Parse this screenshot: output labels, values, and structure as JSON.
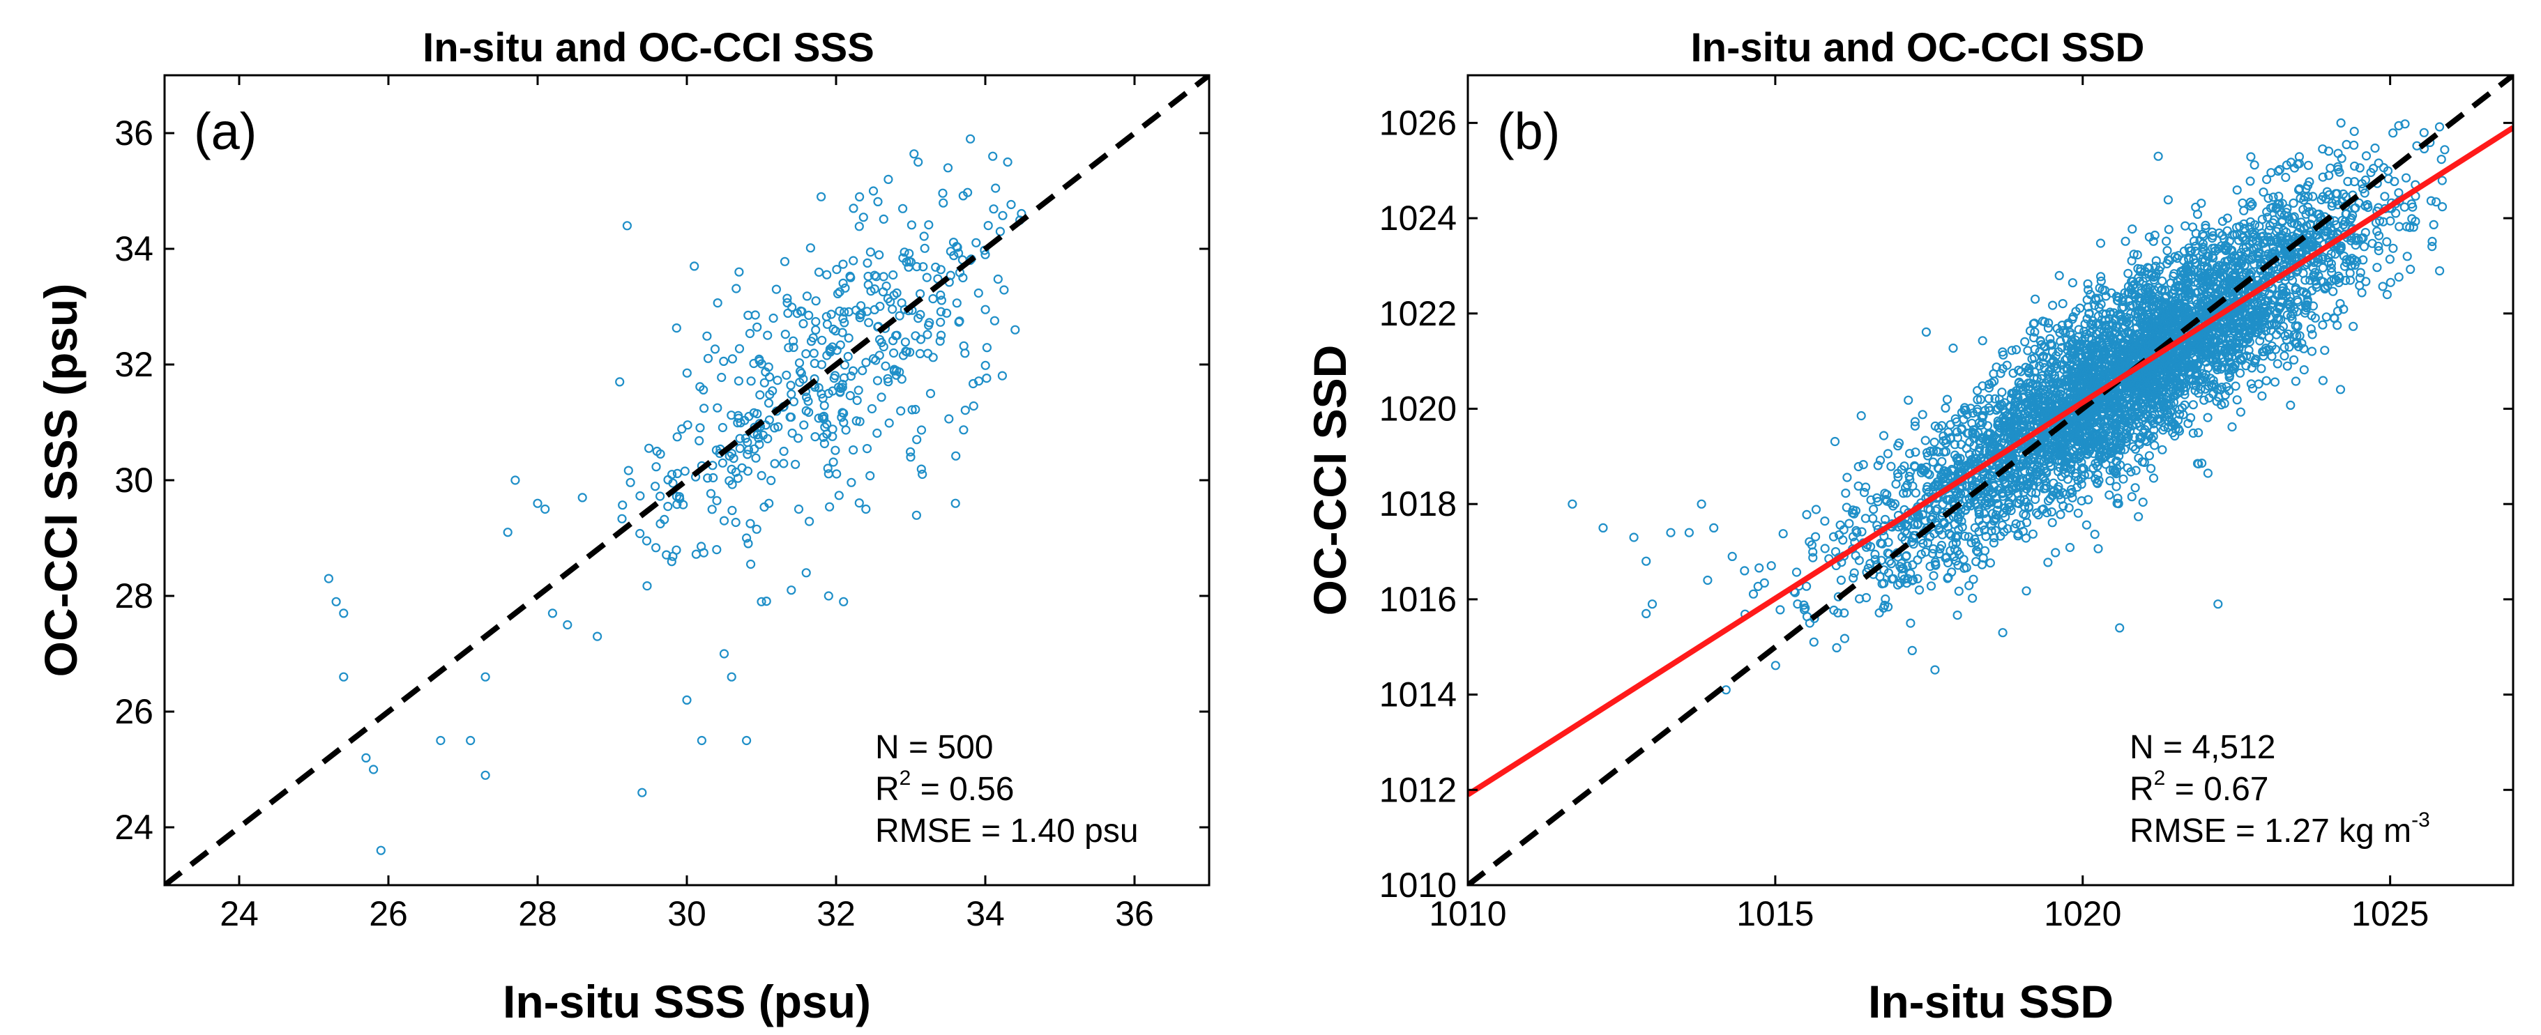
{
  "chart_data": [
    {
      "type": "scatter",
      "panel_label": "(a)",
      "title": "In-situ and OC-CCI SSS",
      "xlabel": "In-situ SSS (psu)",
      "ylabel": "OC-CCI SSS (psu)",
      "xlim": [
        23,
        37
      ],
      "ylim": [
        23,
        37
      ],
      "xticks": [
        24,
        26,
        28,
        30,
        32,
        34,
        36
      ],
      "yticks": [
        24,
        26,
        28,
        30,
        32,
        34,
        36
      ],
      "grid": false,
      "marker_color": "#1f8fc8",
      "reference_line": {
        "style": "dashed",
        "color": "#000000",
        "from": [
          23,
          23
        ],
        "to": [
          37,
          37
        ]
      },
      "stats": {
        "n": "N = 500",
        "r2_prefix": "R",
        "r2_sup": "2",
        "r2_value": " = 0.56",
        "rmse_prefix": "RMSE = 1.40 psu",
        "rmse_sup": ""
      },
      "n_points": 500,
      "points": [
        [
          25.2,
          28.3
        ],
        [
          25.3,
          27.9
        ],
        [
          25.4,
          27.7
        ],
        [
          25.4,
          26.6
        ],
        [
          25.7,
          25.2
        ],
        [
          25.8,
          25.0
        ],
        [
          25.9,
          23.6
        ],
        [
          26.7,
          25.5
        ],
        [
          27.1,
          25.5
        ],
        [
          27.3,
          24.9
        ],
        [
          27.3,
          26.6
        ],
        [
          27.6,
          29.1
        ],
        [
          27.7,
          30.0
        ],
        [
          28.0,
          29.6
        ],
        [
          28.1,
          29.5
        ],
        [
          28.2,
          27.7
        ],
        [
          28.4,
          27.5
        ],
        [
          28.6,
          29.7
        ],
        [
          28.8,
          27.3
        ],
        [
          29.1,
          31.7
        ],
        [
          29.2,
          34.4
        ],
        [
          29.4,
          24.6
        ],
        [
          29.6,
          30.5
        ],
        [
          29.8,
          30.1
        ],
        [
          30.0,
          26.2
        ],
        [
          30.1,
          33.7
        ],
        [
          30.2,
          25.5
        ],
        [
          30.5,
          27.0
        ],
        [
          30.6,
          26.6
        ],
        [
          30.7,
          33.6
        ],
        [
          30.8,
          25.5
        ],
        [
          31.0,
          27.9
        ],
        [
          31.2,
          33.3
        ],
        [
          31.4,
          28.1
        ],
        [
          31.6,
          28.4
        ],
        [
          31.9,
          28.0
        ],
        [
          32.1,
          27.9
        ],
        [
          31.8,
          34.9
        ],
        [
          32.5,
          35.0
        ],
        [
          32.7,
          35.2
        ],
        [
          33.1,
          35.5
        ],
        [
          33.5,
          35.4
        ],
        [
          33.8,
          35.9
        ],
        [
          34.1,
          35.6
        ],
        [
          34.3,
          35.5
        ],
        [
          34.4,
          32.6
        ],
        [
          33.6,
          29.6
        ],
        [
          33.0,
          30.4
        ],
        [
          32.4,
          29.5
        ],
        [
          31.5,
          29.5
        ],
        [
          30.5,
          29.3
        ],
        [
          30.4,
          28.8
        ],
        [
          30.8,
          29.0
        ],
        [
          31.1,
          29.6
        ],
        [
          30.9,
          30.8
        ],
        [
          31.3,
          30.5
        ],
        [
          31.6,
          31.2
        ],
        [
          31.9,
          31.5
        ],
        [
          32.2,
          31.8
        ],
        [
          32.5,
          32.1
        ],
        [
          32.8,
          32.5
        ],
        [
          33.1,
          32.8
        ],
        [
          33.4,
          33.2
        ],
        [
          33.7,
          33.5
        ],
        [
          34.0,
          33.9
        ],
        [
          34.2,
          34.3
        ]
      ],
      "cloud": {
        "x_mean": 32.0,
        "x_sd": 1.4,
        "slope": 0.75,
        "noise_sd": 1.25,
        "seed": 11,
        "x_range": [
          29.0,
          34.5
        ],
        "y_range": [
          25.5,
          36.0
        ]
      }
    },
    {
      "type": "scatter",
      "panel_label": "(b)",
      "title": "In-situ and OC-CCI SSD",
      "xlabel": "In-situ SSD",
      "ylabel": "OC-CCI SSD",
      "xlim": [
        1010,
        1027
      ],
      "ylim": [
        1010,
        1027
      ],
      "xticks": [
        1010,
        1015,
        1020,
        1025
      ],
      "yticks": [
        1010,
        1012,
        1014,
        1016,
        1018,
        1020,
        1022,
        1024,
        1026
      ],
      "grid": false,
      "marker_color": "#1f8fc8",
      "reference_line": {
        "style": "dashed",
        "color": "#000000",
        "from": [
          1010,
          1010
        ],
        "to": [
          1027,
          1027
        ]
      },
      "fit_line": {
        "style": "solid",
        "color": "#ff1a1a",
        "from": [
          1010,
          1011.9
        ],
        "to": [
          1027,
          1025.9
        ]
      },
      "stats": {
        "n": "N = 4,512",
        "r2_prefix": "R",
        "r2_sup": "2",
        "r2_value": " = 0.67",
        "rmse_prefix": "RMSE = 1.27 kg m",
        "rmse_sup": "-3"
      },
      "n_points": 4512,
      "points": [
        [
          1011.7,
          1018.0
        ],
        [
          1012.2,
          1017.5
        ],
        [
          1012.7,
          1017.3
        ],
        [
          1012.9,
          1016.8
        ],
        [
          1013.0,
          1015.9
        ],
        [
          1012.9,
          1015.7
        ],
        [
          1013.3,
          1017.4
        ],
        [
          1013.6,
          1017.4
        ],
        [
          1013.9,
          1016.4
        ],
        [
          1014.2,
          1014.1
        ],
        [
          1014.3,
          1016.9
        ],
        [
          1014.5,
          1016.6
        ],
        [
          1013.8,
          1018.0
        ],
        [
          1014.0,
          1017.5
        ],
        [
          1020.6,
          1015.4
        ],
        [
          1024.2,
          1026.0
        ],
        [
          1024.6,
          1024.8
        ],
        [
          1022.2,
          1015.9
        ],
        [
          1018.7,
          1015.3
        ],
        [
          1017.2,
          1015.5
        ]
      ],
      "cloud": {
        "x_mean": 1020.8,
        "x_sd": 2.0,
        "slope": 0.82,
        "noise_sd": 1.1,
        "seed": 7,
        "x_range": [
          1014.5,
          1026.0
        ],
        "y_range": [
          1014.5,
          1026.0
        ]
      }
    }
  ]
}
